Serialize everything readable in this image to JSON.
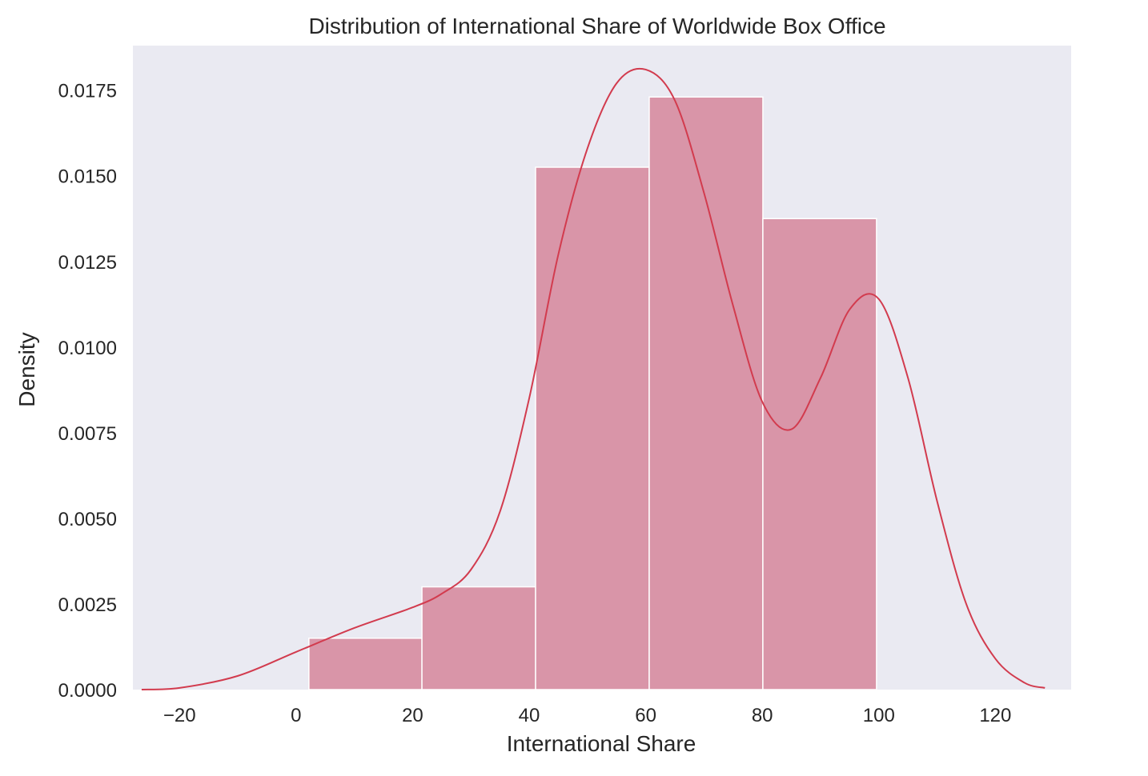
{
  "chart_data": {
    "type": "histogram",
    "title": "Distribution of International Share of Worldwide Box Office",
    "xlabel": "International Share",
    "ylabel": "Density",
    "xlim": [
      -28,
      133
    ],
    "ylim": [
      0,
      0.0188
    ],
    "grid": false,
    "xticks": [
      -20,
      0,
      20,
      40,
      60,
      80,
      100,
      120
    ],
    "xtick_labels": [
      "−20",
      "0",
      "20",
      "40",
      "60",
      "80",
      "100",
      "120"
    ],
    "yticks": [
      0,
      0.0025,
      0.005,
      0.0075,
      0.01,
      0.0125,
      0.015,
      0.0175
    ],
    "ytick_labels": [
      "0.0000",
      "0.0025",
      "0.0050",
      "0.0075",
      "0.0100",
      "0.0125",
      "0.0150",
      "0.0175"
    ],
    "bins": [
      {
        "x0": 2.2,
        "x1": 21.6,
        "density": 0.0015
      },
      {
        "x0": 21.6,
        "x1": 41.1,
        "density": 0.003
      },
      {
        "x0": 41.1,
        "x1": 60.6,
        "density": 0.01525
      },
      {
        "x0": 60.6,
        "x1": 80.1,
        "density": 0.0173
      },
      {
        "x0": 80.1,
        "x1": 99.6,
        "density": 0.01375
      }
    ],
    "kde": {
      "x": [
        -26.5,
        -20,
        -10,
        0,
        10,
        20,
        25,
        30,
        35,
        40,
        45,
        50,
        55,
        60,
        65,
        70,
        75,
        80,
        85,
        90,
        95,
        100,
        105,
        110,
        115,
        120,
        125,
        128.5
      ],
      "y": [
        0.0,
        5e-05,
        0.0004,
        0.0011,
        0.0018,
        0.0024,
        0.0028,
        0.0035,
        0.0052,
        0.0085,
        0.0127,
        0.0158,
        0.0177,
        0.0181,
        0.0172,
        0.0145,
        0.0112,
        0.0084,
        0.0076,
        0.0091,
        0.0111,
        0.0114,
        0.0091,
        0.0055,
        0.0025,
        0.0009,
        0.0002,
        5e-05
      ]
    },
    "colors": {
      "bar_fill": "#d995a8",
      "bar_edge": "#ffffff",
      "kde_line": "#d23b4e",
      "plot_bg": "#eaeaf2",
      "text": "#262626"
    }
  }
}
